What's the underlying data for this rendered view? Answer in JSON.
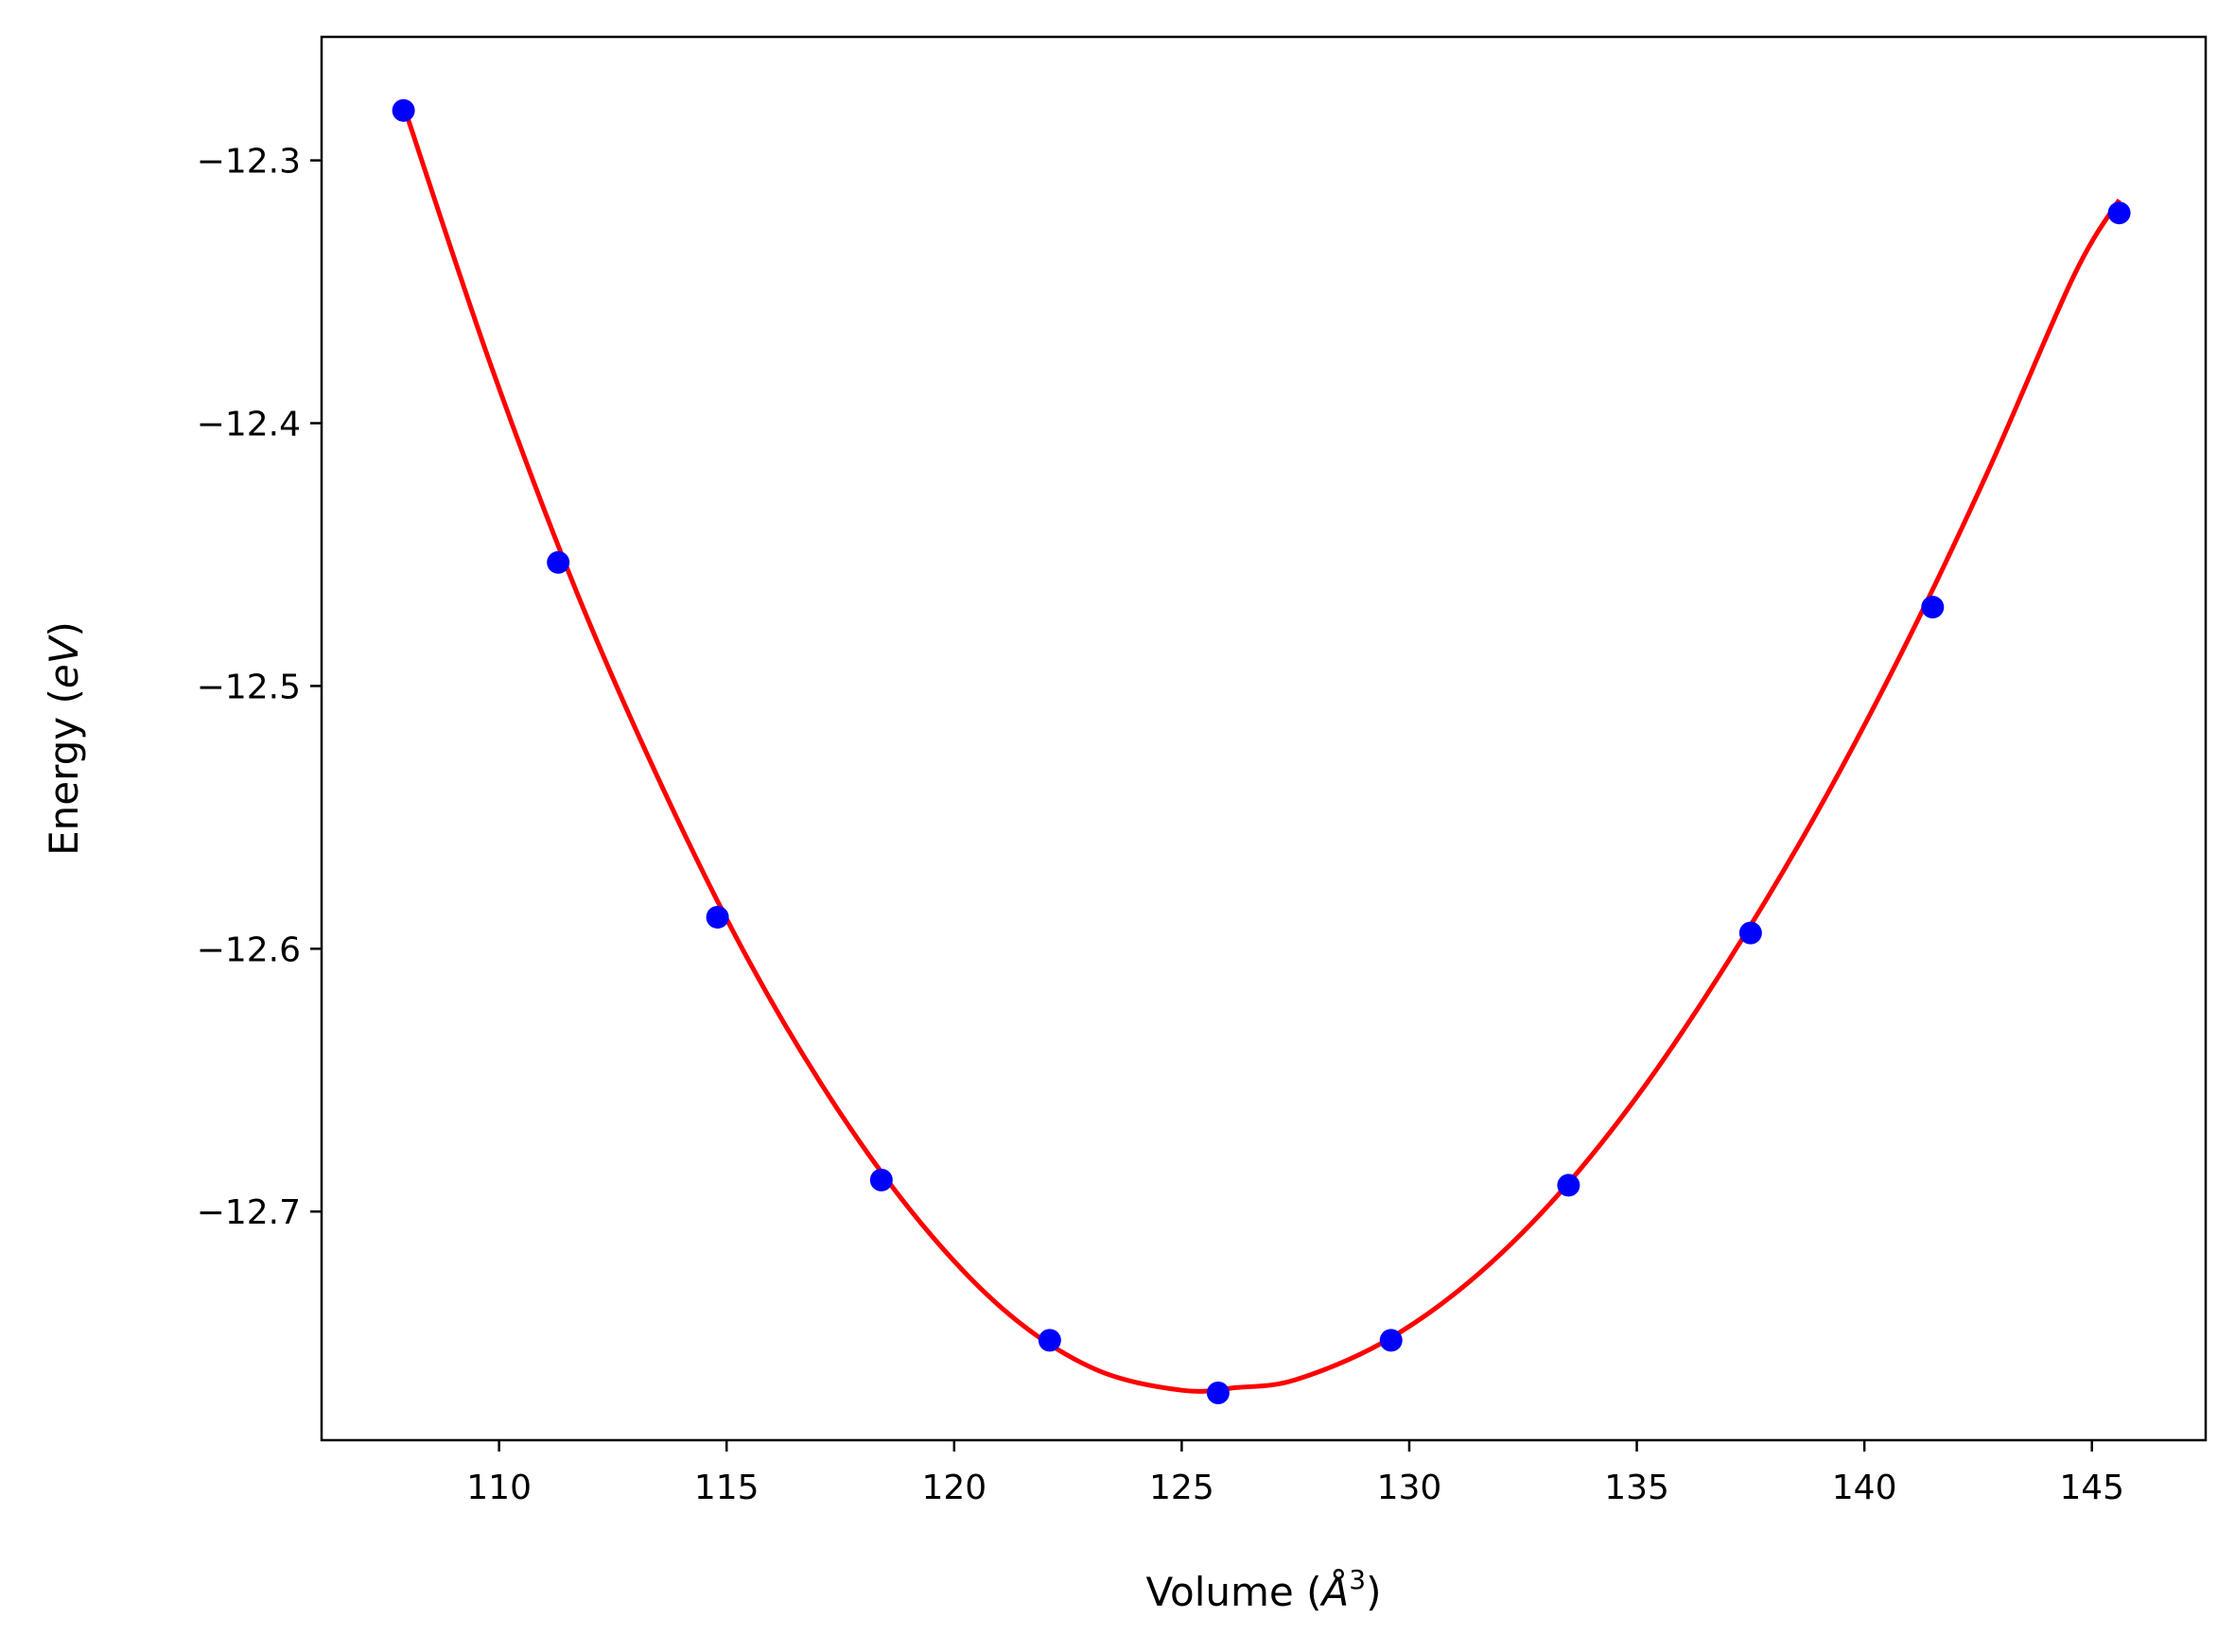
{
  "chart_data": {
    "type": "scatter",
    "title": "",
    "xlabel": {
      "prefix": "Volume (",
      "symbol": "Å",
      "superscript": "3",
      "suffix": ")"
    },
    "ylabel": {
      "prefix": "Energy (",
      "symbol": "eV",
      "suffix": ")"
    },
    "xlim": [
      106.1,
      147.5
    ],
    "ylim": [
      -12.787,
      -12.253
    ],
    "x_ticks": [
      110,
      115,
      120,
      125,
      130,
      135,
      140,
      145
    ],
    "x_tick_labels": [
      "110",
      "115",
      "120",
      "125",
      "130",
      "135",
      "140",
      "145"
    ],
    "y_ticks": [
      -12.3,
      -12.4,
      -12.5,
      -12.6,
      -12.7
    ],
    "y_tick_labels": [
      "−12.3",
      "−12.4",
      "−12.5",
      "−12.6",
      "−12.7"
    ],
    "grid": false,
    "series": [
      {
        "kind": "points",
        "color": "#0000ff",
        "x": [
          107.9,
          111.3,
          114.8,
          118.4,
          122.1,
          125.8,
          129.6,
          133.5,
          137.5,
          141.5,
          145.6
        ],
        "y": [
          -12.281,
          -12.453,
          -12.588,
          -12.688,
          -12.749,
          -12.769,
          -12.749,
          -12.69,
          -12.594,
          -12.47,
          -12.32
        ]
      },
      {
        "kind": "fit-curve",
        "color": "#ff0000",
        "x": [
          107.9,
          109.8,
          111.7,
          113.6,
          115.5,
          117.4,
          119.3,
          121.2,
          123.1,
          125.0,
          126.2,
          127.5,
          129.4,
          131.3,
          133.2,
          135.1,
          137.0,
          138.9,
          140.8,
          142.7,
          144.6,
          145.6
        ],
        "y": [
          -12.279,
          -12.377,
          -12.464,
          -12.539,
          -12.605,
          -12.66,
          -12.705,
          -12.739,
          -12.76,
          -12.768,
          -12.767,
          -12.764,
          -12.75,
          -12.727,
          -12.695,
          -12.654,
          -12.605,
          -12.55,
          -12.488,
          -12.419,
          -12.344,
          -12.315
        ]
      }
    ]
  }
}
